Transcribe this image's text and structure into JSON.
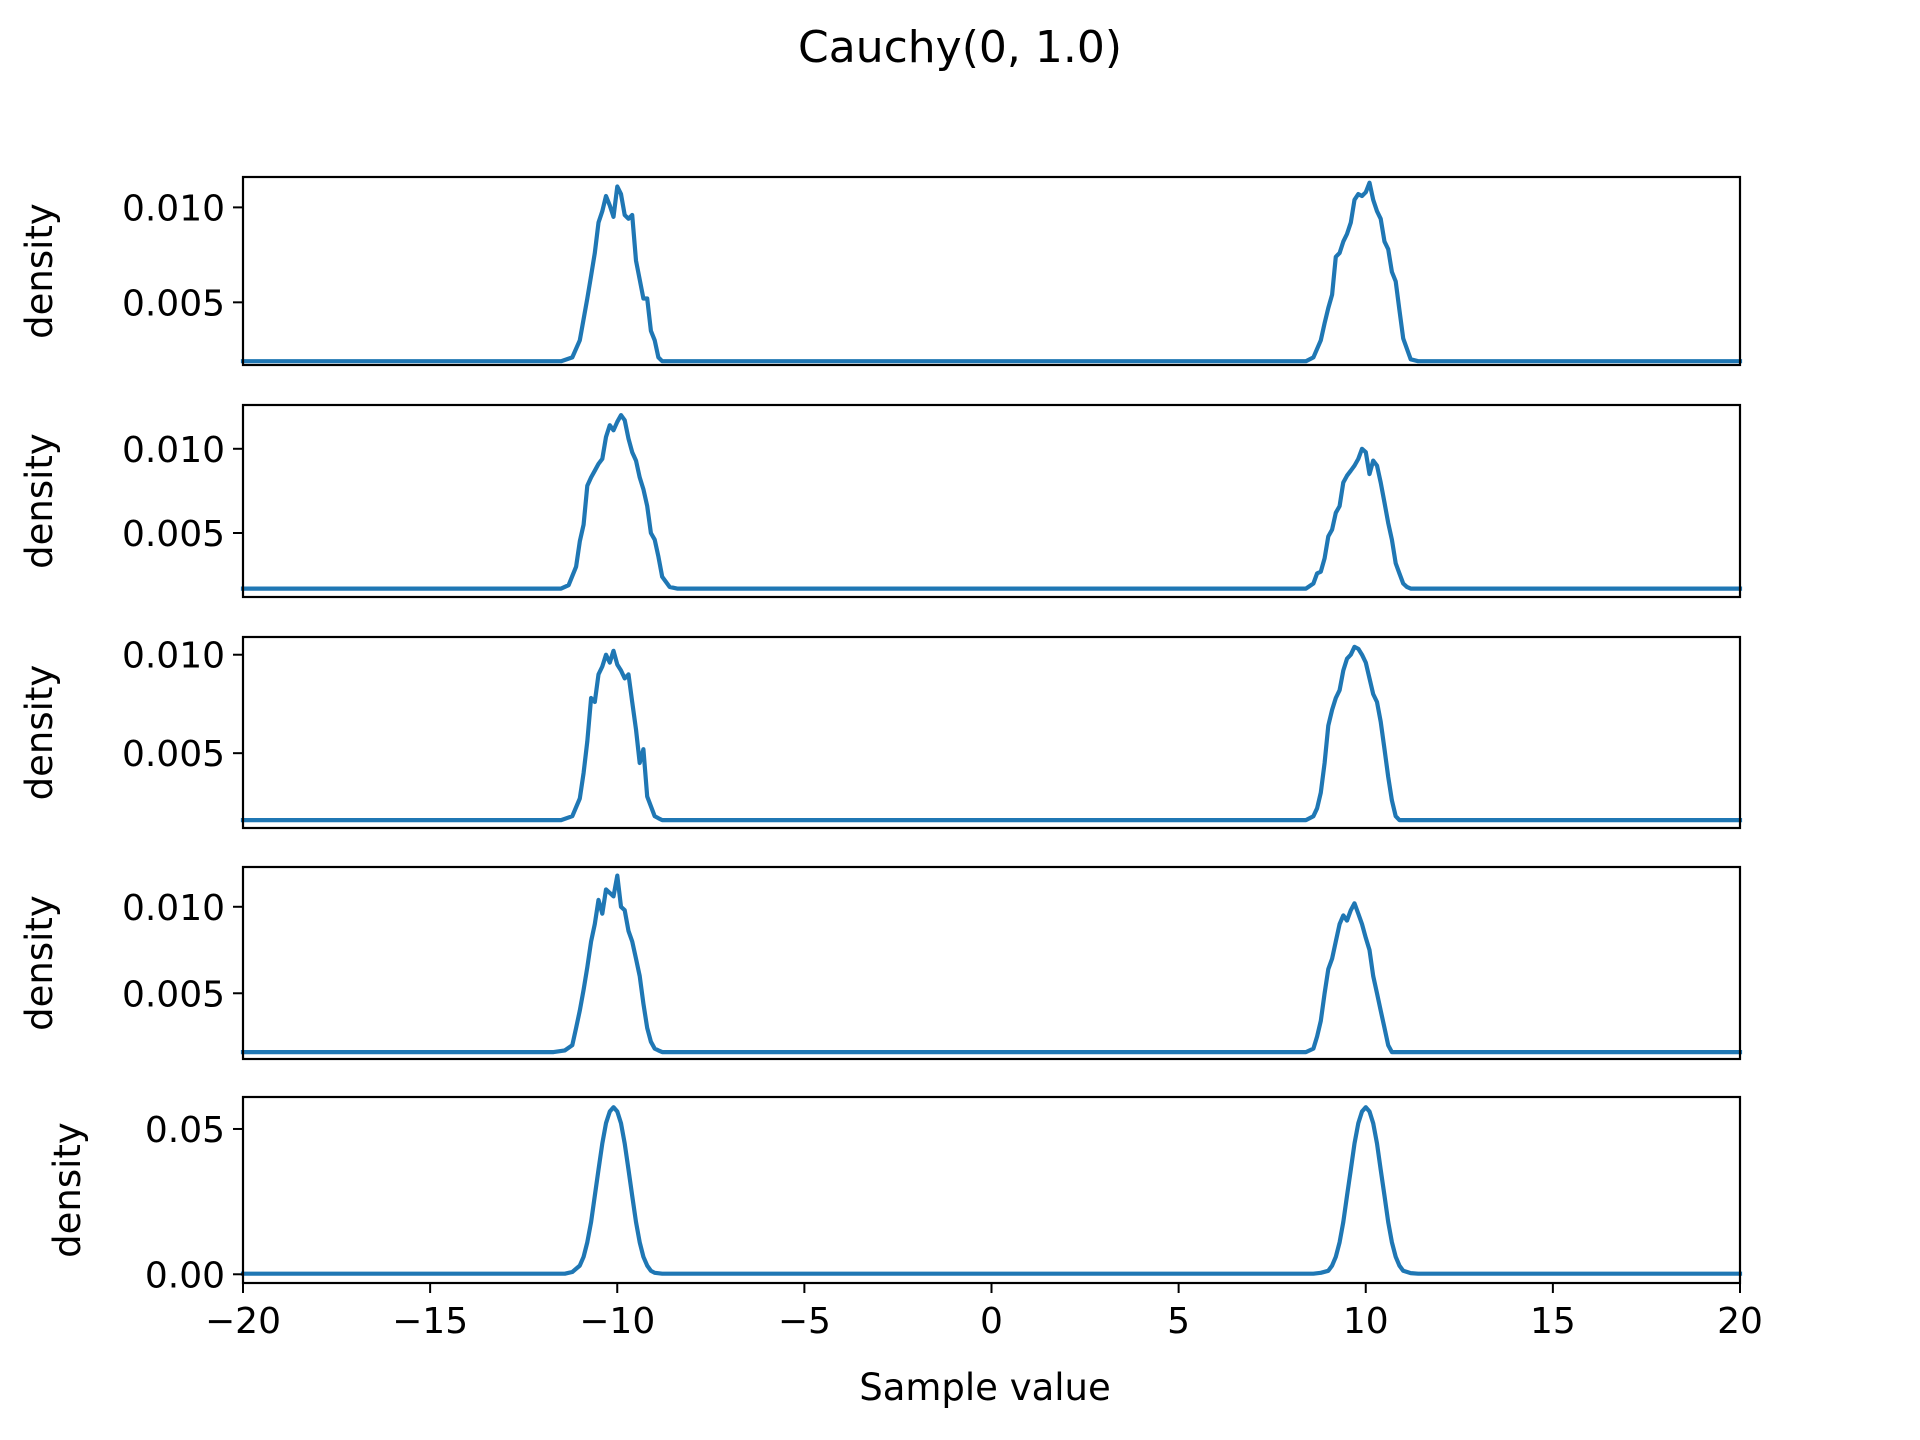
{
  "figure": {
    "title": "Cauchy(0, 1.0)",
    "xlabel": "Sample value"
  },
  "chart_data": [
    {
      "type": "line",
      "ylabel": "density",
      "xlim": [
        -20,
        20
      ],
      "ylim": [
        0.0017,
        0.0116
      ],
      "yticks": [
        0.005,
        0.01
      ],
      "ytick_labels": [
        "0.005",
        "0.010"
      ],
      "show_xticklabels": false,
      "series": [
        {
          "color": "#1f77b4",
          "x": [
            -20,
            -11.5,
            -11.2,
            -11.0,
            -10.8,
            -10.7,
            -10.6,
            -10.5,
            -10.4,
            -10.3,
            -10.2,
            -10.1,
            -10.0,
            -9.9,
            -9.8,
            -9.7,
            -9.6,
            -9.5,
            -9.4,
            -9.3,
            -9.2,
            -9.1,
            -9.0,
            -8.9,
            -8.8,
            -8.6,
            -8.4,
            8.4,
            8.6,
            8.8,
            8.9,
            9.0,
            9.1,
            9.2,
            9.3,
            9.4,
            9.5,
            9.6,
            9.7,
            9.8,
            9.9,
            10.0,
            10.1,
            10.2,
            10.3,
            10.4,
            10.5,
            10.6,
            10.7,
            10.8,
            10.9,
            11.0,
            11.2,
            11.4,
            20
          ],
          "y": [
            0.0019,
            0.0019,
            0.0021,
            0.003,
            0.0052,
            0.0064,
            0.0076,
            0.0092,
            0.0098,
            0.0106,
            0.0101,
            0.0095,
            0.0111,
            0.0107,
            0.0096,
            0.0094,
            0.0096,
            0.0072,
            0.0062,
            0.0052,
            0.0052,
            0.0035,
            0.003,
            0.0021,
            0.0019,
            0.0019,
            0.0019,
            0.0019,
            0.0021,
            0.003,
            0.0039,
            0.0047,
            0.0054,
            0.0074,
            0.0076,
            0.0082,
            0.0086,
            0.0092,
            0.0104,
            0.0107,
            0.0106,
            0.0108,
            0.0113,
            0.0104,
            0.0098,
            0.0094,
            0.0082,
            0.0078,
            0.0066,
            0.0061,
            0.0046,
            0.0031,
            0.002,
            0.0019,
            0.0019
          ]
        }
      ]
    },
    {
      "type": "line",
      "ylabel": "density",
      "xlim": [
        -20,
        20
      ],
      "ylim": [
        0.0012,
        0.0126
      ],
      "yticks": [
        0.005,
        0.01
      ],
      "ytick_labels": [
        "0.005",
        "0.010"
      ],
      "show_xticklabels": false,
      "series": [
        {
          "color": "#1f77b4",
          "x": [
            -20,
            -11.5,
            -11.3,
            -11.1,
            -11.0,
            -10.9,
            -10.8,
            -10.7,
            -10.6,
            -10.5,
            -10.4,
            -10.3,
            -10.2,
            -10.1,
            -10.0,
            -9.9,
            -9.8,
            -9.7,
            -9.6,
            -9.5,
            -9.4,
            -9.3,
            -9.2,
            -9.1,
            -9.0,
            -8.9,
            -8.8,
            -8.6,
            -8.4,
            8.4,
            8.6,
            8.7,
            8.8,
            8.9,
            9.0,
            9.1,
            9.2,
            9.3,
            9.4,
            9.5,
            9.6,
            9.7,
            9.8,
            9.9,
            10.0,
            10.1,
            10.2,
            10.3,
            10.4,
            10.5,
            10.6,
            10.7,
            10.8,
            10.9,
            11.0,
            11.1,
            11.2,
            11.4,
            20
          ],
          "y": [
            0.0017,
            0.0017,
            0.0019,
            0.003,
            0.0045,
            0.0055,
            0.0078,
            0.0083,
            0.0087,
            0.0091,
            0.0094,
            0.0107,
            0.0114,
            0.0111,
            0.0116,
            0.012,
            0.0117,
            0.0106,
            0.0098,
            0.0093,
            0.0083,
            0.0076,
            0.0066,
            0.005,
            0.0046,
            0.0036,
            0.0024,
            0.0018,
            0.0017,
            0.0017,
            0.002,
            0.0026,
            0.0027,
            0.0035,
            0.0048,
            0.0052,
            0.0062,
            0.0066,
            0.008,
            0.0084,
            0.0087,
            0.009,
            0.0094,
            0.01,
            0.0098,
            0.0085,
            0.0093,
            0.009,
            0.008,
            0.0068,
            0.0056,
            0.0046,
            0.0032,
            0.0026,
            0.002,
            0.0018,
            0.0017,
            0.0017,
            0.0017
          ]
        }
      ]
    },
    {
      "type": "line",
      "ylabel": "density",
      "xlim": [
        -20,
        20
      ],
      "ylim": [
        0.0012,
        0.0109
      ],
      "yticks": [
        0.005,
        0.01
      ],
      "ytick_labels": [
        "0.005",
        "0.010"
      ],
      "show_xticklabels": false,
      "series": [
        {
          "color": "#1f77b4",
          "x": [
            -20,
            -11.5,
            -11.2,
            -11.0,
            -10.9,
            -10.8,
            -10.7,
            -10.6,
            -10.5,
            -10.4,
            -10.3,
            -10.2,
            -10.1,
            -10.0,
            -9.9,
            -9.8,
            -9.7,
            -9.6,
            -9.5,
            -9.4,
            -9.3,
            -9.2,
            -9.1,
            -9.0,
            -8.9,
            -8.8,
            -8.6,
            -8.4,
            8.4,
            8.6,
            8.7,
            8.8,
            8.9,
            9.0,
            9.1,
            9.2,
            9.3,
            9.4,
            9.5,
            9.6,
            9.7,
            9.8,
            9.9,
            10.0,
            10.1,
            10.2,
            10.3,
            10.4,
            10.5,
            10.6,
            10.7,
            10.8,
            10.9,
            11.0,
            11.1,
            11.3,
            20
          ],
          "y": [
            0.0016,
            0.0016,
            0.0018,
            0.0027,
            0.004,
            0.0056,
            0.0078,
            0.0076,
            0.009,
            0.0094,
            0.01,
            0.0096,
            0.0102,
            0.0095,
            0.0092,
            0.0088,
            0.009,
            0.0076,
            0.0062,
            0.0045,
            0.0052,
            0.0028,
            0.0023,
            0.0018,
            0.0017,
            0.0016,
            0.0016,
            0.0016,
            0.0016,
            0.0018,
            0.0022,
            0.003,
            0.0045,
            0.0064,
            0.0072,
            0.0078,
            0.0082,
            0.0092,
            0.0098,
            0.01,
            0.0104,
            0.0103,
            0.01,
            0.0096,
            0.0088,
            0.008,
            0.0076,
            0.0066,
            0.0052,
            0.0038,
            0.0026,
            0.0018,
            0.0016,
            0.0016,
            0.0016,
            0.0016,
            0.0016
          ]
        }
      ]
    },
    {
      "type": "line",
      "ylabel": "density",
      "xlim": [
        -20,
        20
      ],
      "ylim": [
        0.0012,
        0.0123
      ],
      "yticks": [
        0.005,
        0.01
      ],
      "ytick_labels": [
        "0.005",
        "0.010"
      ],
      "show_xticklabels": false,
      "series": [
        {
          "color": "#1f77b4",
          "x": [
            -20,
            -11.7,
            -11.4,
            -11.2,
            -11.1,
            -11.0,
            -10.9,
            -10.8,
            -10.7,
            -10.6,
            -10.5,
            -10.4,
            -10.3,
            -10.2,
            -10.1,
            -10.0,
            -9.9,
            -9.8,
            -9.7,
            -9.6,
            -9.5,
            -9.4,
            -9.3,
            -9.2,
            -9.1,
            -9.0,
            -8.9,
            -8.8,
            -8.6,
            -8.4,
            8.4,
            8.6,
            8.7,
            8.8,
            8.9,
            9.0,
            9.1,
            9.2,
            9.3,
            9.4,
            9.5,
            9.6,
            9.7,
            9.8,
            9.9,
            10.0,
            10.1,
            10.2,
            10.3,
            10.4,
            10.5,
            10.6,
            10.7,
            10.8,
            10.9,
            11.0,
            11.1,
            11.3,
            20
          ],
          "y": [
            0.0016,
            0.0016,
            0.0017,
            0.002,
            0.003,
            0.004,
            0.0052,
            0.0065,
            0.008,
            0.009,
            0.0104,
            0.0096,
            0.011,
            0.0108,
            0.0106,
            0.0118,
            0.01,
            0.0098,
            0.0086,
            0.008,
            0.007,
            0.006,
            0.0044,
            0.003,
            0.0022,
            0.0018,
            0.0017,
            0.0016,
            0.0016,
            0.0016,
            0.0016,
            0.0018,
            0.0025,
            0.0034,
            0.005,
            0.0064,
            0.007,
            0.008,
            0.009,
            0.0095,
            0.0092,
            0.0098,
            0.0102,
            0.0096,
            0.009,
            0.0082,
            0.0075,
            0.006,
            0.005,
            0.004,
            0.003,
            0.002,
            0.0016,
            0.0016,
            0.0016,
            0.0016,
            0.0016,
            0.0016,
            0.0016
          ]
        }
      ]
    },
    {
      "type": "line",
      "ylabel": "density",
      "xlim": [
        -20,
        20
      ],
      "ylim": [
        -0.003,
        0.061
      ],
      "yticks": [
        0.0,
        0.05
      ],
      "ytick_labels": [
        "0.00",
        "0.05"
      ],
      "xticks": [
        -20,
        -15,
        -10,
        -5,
        0,
        5,
        10,
        15,
        20
      ],
      "xtick_labels": [
        "−20",
        "−15",
        "−10",
        "−5",
        "0",
        "5",
        "10",
        "15",
        "20"
      ],
      "show_xticklabels": true,
      "series": [
        {
          "color": "#1f77b4",
          "x": [
            -20,
            -11.4,
            -11.2,
            -11.0,
            -10.9,
            -10.8,
            -10.7,
            -10.6,
            -10.5,
            -10.4,
            -10.3,
            -10.2,
            -10.1,
            -10.0,
            -9.9,
            -9.8,
            -9.7,
            -9.6,
            -9.5,
            -9.4,
            -9.3,
            -9.2,
            -9.1,
            -9.0,
            -8.8,
            -8.6,
            8.6,
            8.8,
            9.0,
            9.1,
            9.2,
            9.3,
            9.4,
            9.5,
            9.6,
            9.7,
            9.8,
            9.9,
            10.0,
            10.1,
            10.2,
            10.3,
            10.4,
            10.5,
            10.6,
            10.7,
            10.8,
            10.9,
            11.0,
            11.2,
            11.4,
            20
          ],
          "y": [
            0.0002,
            0.0002,
            0.0008,
            0.003,
            0.006,
            0.011,
            0.018,
            0.027,
            0.036,
            0.045,
            0.052,
            0.056,
            0.0575,
            0.056,
            0.052,
            0.045,
            0.036,
            0.027,
            0.018,
            0.011,
            0.006,
            0.003,
            0.0012,
            0.0005,
            0.0002,
            0.0002,
            0.0002,
            0.0005,
            0.0012,
            0.003,
            0.006,
            0.011,
            0.018,
            0.027,
            0.036,
            0.045,
            0.052,
            0.056,
            0.0575,
            0.056,
            0.052,
            0.045,
            0.036,
            0.027,
            0.018,
            0.011,
            0.006,
            0.003,
            0.0012,
            0.0004,
            0.0002,
            0.0002
          ]
        }
      ]
    }
  ]
}
